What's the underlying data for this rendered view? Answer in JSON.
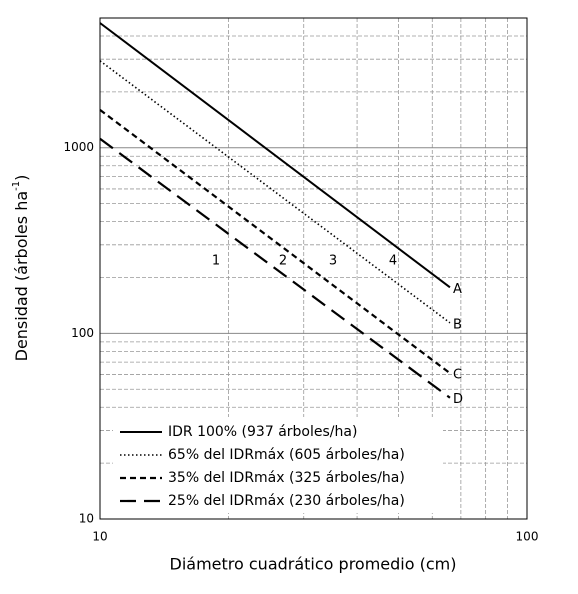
{
  "chart_data": {
    "type": "line",
    "x_label": "Diámetro cuadrático promedio (cm)",
    "y_label": {
      "text": "Densidad (árboles ha",
      "superscript": "-1",
      "suffix": ")"
    },
    "log_x": true,
    "log_y": true,
    "grid": true,
    "xlim": [
      10,
      100
    ],
    "ylim": [
      10,
      5000
    ],
    "xticks": [
      10,
      100
    ],
    "yticks": [
      10,
      100,
      1000
    ],
    "minor_xticks": [
      20,
      30,
      40,
      50,
      60,
      70,
      80,
      90
    ],
    "minor_yticks": [
      20,
      30,
      40,
      50,
      60,
      70,
      80,
      90,
      200,
      300,
      400,
      500,
      600,
      700,
      800,
      900,
      2000,
      3000,
      4000
    ],
    "annotations": [
      "1",
      "2",
      "3",
      "4"
    ],
    "legend": "lower left",
    "series": [
      {
        "name": "IDR 100% (937 árboles/ha)",
        "color": "#000000",
        "dash": "solid",
        "end_label": "A",
        "x": [
          10,
          66
        ],
        "values": [
          4700,
          177
        ]
      },
      {
        "name": "65% del IDRmáx (605 árboles/ha)",
        "color": "#000000",
        "dash": "dotted",
        "end_label": "B",
        "x": [
          10,
          66
        ],
        "values": [
          2940,
          114
        ]
      },
      {
        "name": "35% del IDRmáx (325 árboles/ha)",
        "color": "#000000",
        "dash": "short-dash",
        "end_label": "C",
        "x": [
          10,
          66
        ],
        "values": [
          1600,
          61
        ]
      },
      {
        "name": "25% del IDRmáx (230 árboles/ha)",
        "color": "#000000",
        "dash": "long-dash",
        "end_label": "D",
        "x": [
          10,
          66
        ],
        "values": [
          1118,
          45
        ]
      }
    ]
  }
}
